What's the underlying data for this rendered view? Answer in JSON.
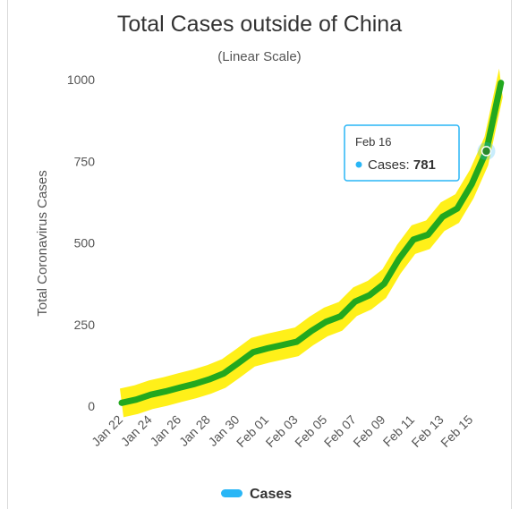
{
  "chart_data": {
    "type": "line",
    "title": "Total Cases outside of China",
    "subtitle": "(Linear Scale)",
    "ylabel": "Total Coronavirus Cases",
    "xlabel": "",
    "ylim": [
      0,
      1000
    ],
    "y_ticks": [
      0,
      250,
      500,
      750,
      1000
    ],
    "x": [
      "Jan 22",
      "Jan 23",
      "Jan 24",
      "Jan 25",
      "Jan 26",
      "Jan 27",
      "Jan 28",
      "Jan 29",
      "Jan 30",
      "Jan 31",
      "Feb 01",
      "Feb 02",
      "Feb 03",
      "Feb 04",
      "Feb 05",
      "Feb 06",
      "Feb 07",
      "Feb 08",
      "Feb 09",
      "Feb 10",
      "Feb 11",
      "Feb 12",
      "Feb 13",
      "Feb 14",
      "Feb 15",
      "Feb 16",
      "Feb 17"
    ],
    "x_tick_labels": [
      "Jan 22",
      "Jan 24",
      "Jan 26",
      "Jan 28",
      "Jan 30",
      "Feb 01",
      "Feb 03",
      "Feb 05",
      "Feb 07",
      "Feb 09",
      "Feb 11",
      "Feb 13",
      "Feb 15"
    ],
    "series": [
      {
        "name": "Cases",
        "color": "#29b6f6",
        "values": [
          10,
          20,
          35,
          45,
          57,
          68,
          82,
          100,
          132,
          165,
          177,
          187,
          197,
          230,
          258,
          275,
          320,
          340,
          375,
          450,
          510,
          525,
          580,
          605,
          680,
          781,
          990
        ]
      }
    ],
    "legend": {
      "position": "bottom-center",
      "entries": [
        "Cases"
      ]
    },
    "annotation_overlay": {
      "trend_line_color": "#22a81e",
      "highlight_band_color": "#ffee00"
    },
    "tooltip": {
      "date": "Feb 16",
      "series": "Cases",
      "value": "781"
    },
    "grid": false
  }
}
